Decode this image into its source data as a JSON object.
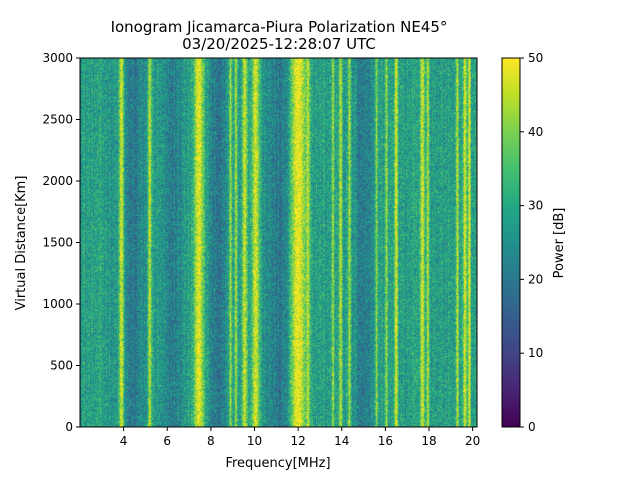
{
  "chart_data": {
    "type": "heatmap",
    "title_line1": "Ionogram Jicamarca-Piura Polarization NE45°",
    "title_line2": "03/20/2025-12:28:07 UTC",
    "xlabel": "Frequency[MHz]",
    "ylabel": "Virtual Distance[Km]",
    "xlim": [
      2.0,
      20.2
    ],
    "ylim": [
      0,
      3000
    ],
    "xticks": [
      4,
      6,
      8,
      10,
      12,
      14,
      16,
      18,
      20
    ],
    "yticks": [
      0,
      500,
      1000,
      1500,
      2000,
      2500,
      3000
    ],
    "colorbar": {
      "label": "Power [dB]",
      "range": [
        0,
        50
      ],
      "ticks": [
        0,
        10,
        20,
        30,
        40,
        50
      ],
      "colormap": "viridis"
    },
    "background_power_db": 28,
    "noise_db": 7,
    "bright_bands": [
      {
        "f": 3.9,
        "width": 0.12,
        "power": 47
      },
      {
        "f": 5.2,
        "width": 0.08,
        "power": 46
      },
      {
        "f": 7.45,
        "width": 0.22,
        "power": 49
      },
      {
        "f": 8.9,
        "width": 0.06,
        "power": 44
      },
      {
        "f": 9.15,
        "width": 0.06,
        "power": 44
      },
      {
        "f": 9.55,
        "width": 0.12,
        "power": 46
      },
      {
        "f": 10.05,
        "width": 0.18,
        "power": 47
      },
      {
        "f": 12.0,
        "width": 0.35,
        "power": 50
      },
      {
        "f": 12.45,
        "width": 0.08,
        "power": 45
      },
      {
        "f": 13.6,
        "width": 0.06,
        "power": 43
      },
      {
        "f": 13.95,
        "width": 0.08,
        "power": 45
      },
      {
        "f": 14.35,
        "width": 0.06,
        "power": 44
      },
      {
        "f": 15.6,
        "width": 0.05,
        "power": 42
      },
      {
        "f": 16.05,
        "width": 0.06,
        "power": 43
      },
      {
        "f": 16.5,
        "width": 0.08,
        "power": 48
      },
      {
        "f": 17.7,
        "width": 0.1,
        "power": 47
      },
      {
        "f": 17.95,
        "width": 0.06,
        "power": 45
      },
      {
        "f": 19.3,
        "width": 0.06,
        "power": 46
      },
      {
        "f": 19.65,
        "width": 0.08,
        "power": 48
      },
      {
        "f": 19.85,
        "width": 0.06,
        "power": 50
      }
    ],
    "dark_bands": [
      {
        "f": 4.4,
        "width": 0.6,
        "power": 20
      },
      {
        "f": 6.2,
        "width": 0.5,
        "power": 21
      },
      {
        "f": 8.3,
        "width": 0.4,
        "power": 19
      },
      {
        "f": 11.2,
        "width": 0.6,
        "power": 20
      },
      {
        "f": 15.0,
        "width": 0.4,
        "power": 21
      }
    ]
  }
}
